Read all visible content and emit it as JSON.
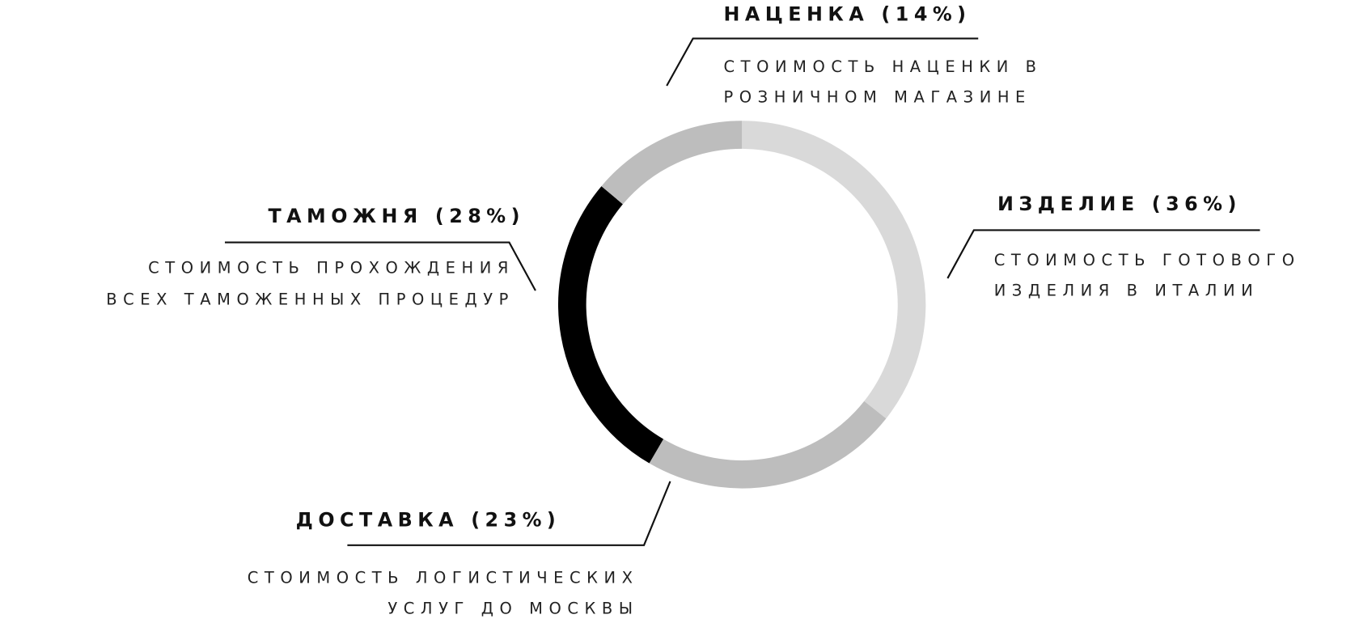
{
  "chart_data": {
    "type": "donut",
    "categories": [
      "ИЗДЕЛИЕ",
      "ДОСТАВКА",
      "ТАМОЖНЯ",
      "НАЦЕНКА"
    ],
    "values": [
      36,
      23,
      28,
      14
    ],
    "value_labels": [
      "(36%)",
      "(23%)",
      "(28%)",
      "(14%)"
    ],
    "colors": [
      "#d9d9d9",
      "#bdbdbd",
      "#000000",
      "#bdbdbd"
    ],
    "annotations": [
      [
        "СТОИМОСТЬ ГОТОВОГО",
        "ИЗДЕЛИЯ В ИТАЛИИ"
      ],
      [
        "СТОИМОСТЬ ЛОГИСТИЧЕСКИХ",
        "УСЛУГ ДО МОСКВЫ"
      ],
      [
        "СТОИМОСТЬ ПРОХОЖДЕНИЯ",
        "ВСЕХ ТАМОЖЕННЫХ ПРОЦЕДУР"
      ],
      [
        "СТОИМОСТЬ НАЦЕНКИ В",
        "РОЗНИЧНОМ МАГАЗИНЕ"
      ]
    ]
  }
}
